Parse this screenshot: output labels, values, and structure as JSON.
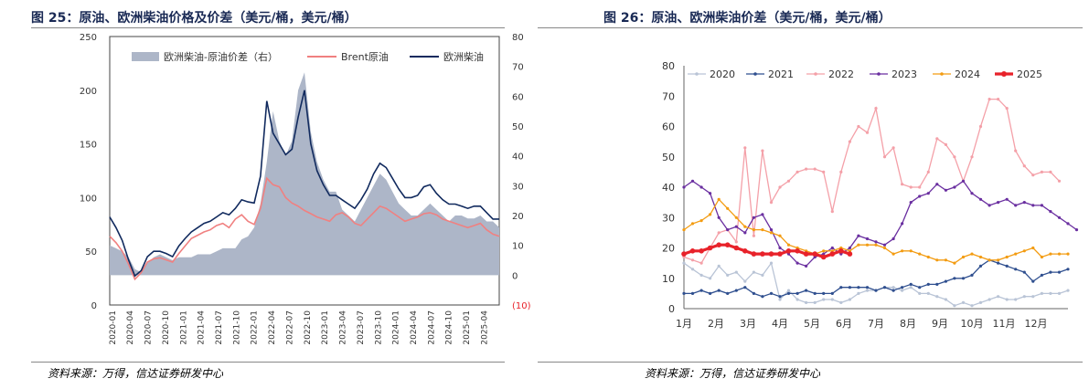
{
  "left": {
    "title": "图 25：原油、欧洲柴油价格及价差（美元/桶，美元/桶）",
    "source": "资料来源：万得，信达证券研发中心",
    "chart_data": {
      "type": "line",
      "y_left_ticks": [
        "0",
        "50",
        "100",
        "150",
        "200",
        "250"
      ],
      "y_right_ticks": [
        "(10)",
        "0",
        "10",
        "20",
        "30",
        "40",
        "50",
        "60",
        "70",
        "80"
      ],
      "ylim_left": [
        0,
        250
      ],
      "ylim_right": [
        -10,
        80
      ],
      "x_ticks": [
        "2020-01",
        "2020-04",
        "2020-07",
        "2020-10",
        "2021-01",
        "2021-04",
        "2021-07",
        "2021-10",
        "2022-01",
        "2022-04",
        "2022-07",
        "2022-10",
        "2023-01",
        "2023-04",
        "2023-07",
        "2023-10",
        "2024-01",
        "2024-04",
        "2024-07",
        "2024-10",
        "2025-01",
        "2025-04"
      ],
      "legend": "top",
      "series": [
        {
          "name": "欧洲柴油-原油价差（右）",
          "axis": "right",
          "type": "area",
          "color": "#adb6c8",
          "values": [
            10,
            9,
            8,
            6,
            2,
            1,
            4,
            6,
            7,
            6,
            5,
            6,
            6,
            6,
            7,
            7,
            7,
            8,
            9,
            9,
            9,
            12,
            13,
            16,
            24,
            38,
            55,
            45,
            40,
            45,
            62,
            68,
            48,
            38,
            32,
            28,
            28,
            22,
            20,
            18,
            22,
            26,
            30,
            34,
            32,
            28,
            24,
            22,
            20,
            20,
            22,
            24,
            22,
            20,
            18,
            20,
            20,
            19,
            19,
            20,
            18,
            18,
            16
          ]
        },
        {
          "name": "Brent原油",
          "axis": "left",
          "type": "line",
          "color": "#f08080",
          "values": [
            64,
            58,
            50,
            38,
            24,
            30,
            40,
            43,
            44,
            42,
            40,
            48,
            55,
            62,
            65,
            68,
            70,
            74,
            76,
            72,
            80,
            84,
            78,
            75,
            90,
            118,
            112,
            110,
            100,
            95,
            92,
            88,
            85,
            82,
            80,
            78,
            84,
            86,
            82,
            76,
            74,
            80,
            86,
            92,
            90,
            86,
            82,
            78,
            80,
            82,
            85,
            86,
            84,
            80,
            78,
            76,
            74,
            72,
            74,
            76,
            70,
            66,
            64
          ]
        },
        {
          "name": "欧洲柴油",
          "axis": "left",
          "type": "line",
          "color": "#112a5e",
          "values": [
            82,
            72,
            60,
            42,
            27,
            32,
            45,
            50,
            50,
            48,
            45,
            55,
            62,
            68,
            72,
            76,
            78,
            82,
            86,
            84,
            90,
            98,
            96,
            95,
            120,
            190,
            160,
            150,
            140,
            145,
            175,
            200,
            150,
            125,
            112,
            102,
            102,
            98,
            94,
            90,
            98,
            108,
            122,
            132,
            128,
            118,
            108,
            100,
            100,
            102,
            110,
            112,
            104,
            98,
            94,
            94,
            92,
            90,
            92,
            92,
            86,
            80,
            80
          ]
        }
      ]
    }
  },
  "right": {
    "title": "图 26：原油、欧洲柴油价差（美元/桶，美元/桶）",
    "source": "资料来源：万得，信达证券研发中心",
    "chart_data": {
      "type": "line",
      "ylim": [
        0,
        80
      ],
      "y_ticks": [
        "0",
        "10",
        "20",
        "30",
        "40",
        "50",
        "60",
        "70",
        "80"
      ],
      "x_ticks": [
        "1月",
        "2月",
        "3月",
        "4月",
        "5月",
        "6月",
        "7月",
        "8月",
        "9月",
        "10月",
        "11月",
        "12月"
      ],
      "legend": "top",
      "series": [
        {
          "name": "2020",
          "color": "#b9c4d6",
          "marker": "circle",
          "values": [
            15,
            13,
            11,
            10,
            14,
            11,
            12,
            9,
            12,
            11,
            15,
            3,
            6,
            3,
            2,
            2,
            3,
            3,
            2,
            3,
            5,
            6,
            6,
            7,
            7,
            6,
            7,
            5,
            5,
            4,
            3,
            1,
            2,
            1,
            2,
            3,
            4,
            3,
            3,
            4,
            4,
            5,
            5,
            5,
            6
          ]
        },
        {
          "name": "2021",
          "color": "#2f4f8f",
          "marker": "circle",
          "values": [
            5,
            5,
            6,
            5,
            6,
            5,
            6,
            7,
            5,
            4,
            5,
            4,
            5,
            5,
            6,
            5,
            5,
            5,
            7,
            7,
            7,
            7,
            6,
            7,
            6,
            7,
            8,
            7,
            8,
            8,
            9,
            10,
            10,
            11,
            14,
            16,
            15,
            14,
            13,
            12,
            9,
            11,
            12,
            12,
            13
          ]
        },
        {
          "name": "2022",
          "color": "#f4a0a8",
          "marker": "circle",
          "values": [
            17,
            16,
            15,
            20,
            25,
            26,
            22,
            53,
            24,
            52,
            35,
            40,
            42,
            45,
            46,
            46,
            45,
            32,
            45,
            55,
            60,
            58,
            66,
            50,
            53,
            41,
            40,
            40,
            45,
            56,
            54,
            50,
            42,
            50,
            60,
            69,
            69,
            66,
            52,
            47,
            44,
            45,
            45,
            42
          ]
        },
        {
          "name": "2023",
          "color": "#6a2fa0",
          "marker": "circle",
          "values": [
            40,
            42,
            40,
            38,
            30,
            26,
            27,
            25,
            30,
            31,
            26,
            20,
            18,
            15,
            14,
            17,
            18,
            20,
            18,
            20,
            24,
            23,
            22,
            21,
            23,
            28,
            35,
            37,
            38,
            41,
            39,
            40,
            42,
            38,
            36,
            34,
            35,
            36,
            34,
            35,
            34,
            34,
            32,
            30,
            28,
            26
          ]
        },
        {
          "name": "2024",
          "color": "#f39c12",
          "marker": "circle",
          "values": [
            26,
            28,
            29,
            31,
            36,
            33,
            30,
            27,
            26,
            26,
            25,
            24,
            21,
            20,
            19,
            18,
            19,
            19,
            20,
            19,
            21,
            21,
            21,
            20,
            18,
            19,
            19,
            18,
            17,
            16,
            16,
            15,
            17,
            18,
            17,
            16,
            16,
            17,
            18,
            19,
            20,
            17,
            18,
            18,
            18
          ]
        },
        {
          "name": "2025",
          "color": "#e8222a",
          "marker": "circle",
          "values": [
            18,
            19,
            19,
            20,
            21,
            21,
            20,
            19,
            18,
            18,
            18,
            18,
            19,
            19,
            18,
            18,
            17,
            18,
            19,
            18
          ]
        }
      ]
    }
  }
}
